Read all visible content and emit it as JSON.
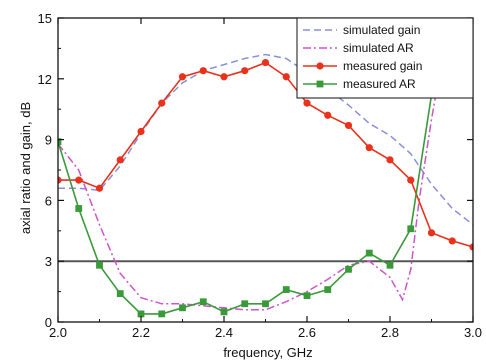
{
  "chart_data": {
    "type": "line",
    "title": "",
    "xlabel": "frequency, GHz",
    "ylabel": "axial ratio and gain, dB",
    "xlim": [
      2.0,
      3.0
    ],
    "ylim": [
      0,
      15
    ],
    "xticks": [
      2.0,
      2.2,
      2.4,
      2.6,
      2.8,
      3.0
    ],
    "xtick_labels": [
      "2.0",
      "2.2",
      "2.4",
      "2.6",
      "2.8",
      "3.0"
    ],
    "yticks": [
      0,
      3,
      6,
      9,
      12,
      15
    ],
    "ytick_labels": [
      "0",
      "3",
      "6",
      "9",
      "12",
      "15"
    ],
    "grid": false,
    "legend_position": "top-right",
    "reference_line": {
      "y": 3,
      "color": "#555555"
    },
    "series": [
      {
        "name": "simulated gain",
        "style": "dashed",
        "color": "#8a8fd8",
        "marker": "none",
        "x": [
          2.0,
          2.05,
          2.1,
          2.15,
          2.2,
          2.25,
          2.3,
          2.35,
          2.4,
          2.45,
          2.5,
          2.55,
          2.6,
          2.65,
          2.7,
          2.75,
          2.8,
          2.85,
          2.9,
          2.95,
          3.0
        ],
        "y": [
          6.6,
          6.6,
          6.5,
          7.7,
          9.3,
          10.8,
          11.8,
          12.4,
          12.7,
          13.0,
          13.2,
          13.0,
          12.3,
          11.5,
          10.7,
          9.8,
          9.2,
          8.3,
          6.8,
          5.6,
          4.8
        ]
      },
      {
        "name": "simulated AR",
        "style": "dash-dot",
        "color": "#cc55cc",
        "marker": "none",
        "x": [
          2.0,
          2.05,
          2.1,
          2.15,
          2.2,
          2.25,
          2.3,
          2.35,
          2.4,
          2.45,
          2.5,
          2.55,
          2.6,
          2.65,
          2.7,
          2.75,
          2.8,
          2.83,
          2.85,
          2.87,
          2.9,
          2.93,
          2.95
        ],
        "y": [
          8.8,
          7.5,
          4.8,
          2.4,
          1.2,
          0.9,
          0.9,
          0.8,
          0.7,
          0.6,
          0.6,
          1.0,
          1.5,
          2.1,
          2.8,
          3.0,
          2.2,
          1.1,
          2.6,
          6.0,
          10.0,
          13.5,
          15.0
        ]
      },
      {
        "name": "measured gain",
        "style": "solid",
        "color": "#e8321c",
        "marker": "circle",
        "x": [
          2.0,
          2.05,
          2.1,
          2.15,
          2.2,
          2.25,
          2.3,
          2.35,
          2.4,
          2.45,
          2.5,
          2.55,
          2.6,
          2.65,
          2.7,
          2.75,
          2.8,
          2.85,
          2.9,
          2.95,
          3.0
        ],
        "y": [
          7.0,
          7.0,
          6.6,
          8.0,
          9.4,
          10.8,
          12.1,
          12.4,
          12.1,
          12.4,
          12.8,
          12.1,
          10.8,
          10.2,
          9.7,
          8.6,
          8.0,
          7.0,
          4.4,
          4.0,
          3.7
        ]
      },
      {
        "name": "measured AR",
        "style": "solid",
        "color": "#3a9a3a",
        "marker": "square",
        "x": [
          2.0,
          2.05,
          2.1,
          2.15,
          2.2,
          2.25,
          2.3,
          2.35,
          2.4,
          2.45,
          2.5,
          2.55,
          2.6,
          2.65,
          2.7,
          2.75,
          2.8,
          2.85,
          2.9,
          2.95
        ],
        "y": [
          8.9,
          5.6,
          2.8,
          1.4,
          0.4,
          0.4,
          0.7,
          1.0,
          0.5,
          0.9,
          0.9,
          1.6,
          1.3,
          1.6,
          2.6,
          3.4,
          2.8,
          4.6,
          11.2,
          15.0
        ]
      }
    ]
  }
}
